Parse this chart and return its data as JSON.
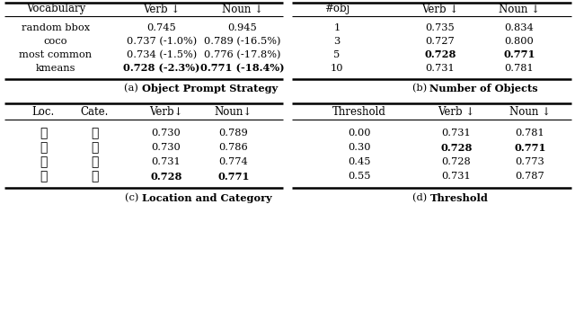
{
  "table_a": {
    "headers": [
      "Vocabulary",
      "Verb ↓",
      "Noun ↓"
    ],
    "rows": [
      [
        "random bbox",
        "0.745",
        "0.945"
      ],
      [
        "coco",
        "0.737 (-1.0%)",
        "0.789 (-16.5%)"
      ],
      [
        "most common",
        "0.734 (-1.5%)",
        "0.776 (-17.8%)"
      ],
      [
        "kmeans",
        "0.728 (-2.3%)",
        "0.771 (-18.4%)"
      ]
    ],
    "bold_row": 3,
    "bold_cols": [
      1,
      2
    ],
    "caption_prefix": "(a) ",
    "caption_bold": "Object Prompt Strategy"
  },
  "table_b": {
    "headers": [
      "#obj",
      "Verb ↓",
      "Noun ↓"
    ],
    "rows": [
      [
        "1",
        "0.735",
        "0.834"
      ],
      [
        "3",
        "0.727",
        "0.800"
      ],
      [
        "5",
        "0.728",
        "0.771"
      ],
      [
        "10",
        "0.731",
        "0.781"
      ]
    ],
    "bold_row": 2,
    "bold_cols": [
      1,
      2
    ],
    "caption_prefix": "(b) ",
    "caption_bold": "Number of Objects"
  },
  "table_c": {
    "headers": [
      "Loc.",
      "Cate.",
      "Verb↓",
      "Noun↓"
    ],
    "rows": [
      [
        "✗",
        "✗",
        "0.730",
        "0.789"
      ],
      [
        "✓",
        "✗",
        "0.730",
        "0.786"
      ],
      [
        "✗",
        "✓",
        "0.731",
        "0.774"
      ],
      [
        "✓",
        "✓",
        "0.728",
        "0.771"
      ]
    ],
    "bold_row": 3,
    "bold_cols": [
      2,
      3
    ],
    "caption_prefix": "(c) ",
    "caption_bold": "Location and Category"
  },
  "table_d": {
    "headers": [
      "Threshold",
      "Verb ↓",
      "Noun ↓"
    ],
    "rows": [
      [
        "0.00",
        "0.731",
        "0.781"
      ],
      [
        "0.30",
        "0.728",
        "0.771"
      ],
      [
        "0.45",
        "0.728",
        "0.773"
      ],
      [
        "0.55",
        "0.731",
        "0.787"
      ]
    ],
    "bold_row": 1,
    "bold_cols": [
      1,
      2
    ],
    "caption_prefix": "(d) ",
    "caption_bold": "Threshold"
  }
}
